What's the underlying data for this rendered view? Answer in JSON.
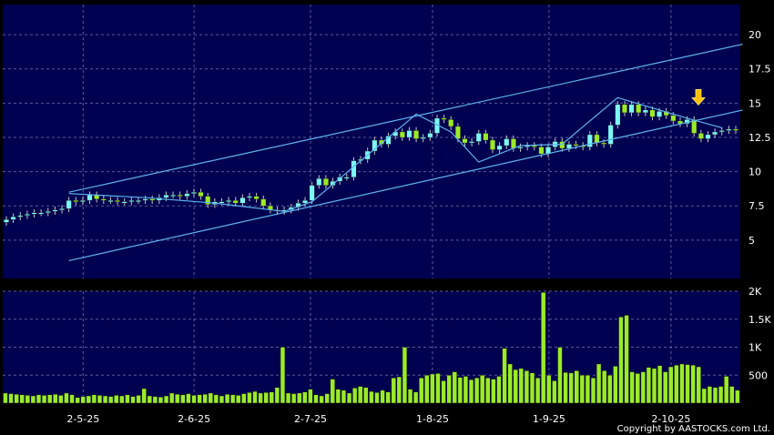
{
  "copyright": "Copyright by AASTOCKS.com Ltd.",
  "chart_data": [
    {
      "type": "candlestick",
      "y_ticks": [
        5,
        7.5,
        10,
        12.5,
        15,
        17.5,
        20
      ],
      "y_tick_labels": [
        "5",
        "7.5",
        "10",
        "12.5",
        "15",
        "17.5",
        "20"
      ],
      "ylim": [
        2.2,
        22.2
      ],
      "grid": true,
      "colors": {
        "background": "#000050",
        "grid": "#5a5a9a",
        "up": "#7cf7f7",
        "down": "#9bea2a",
        "trendline": "#5fb4f0",
        "marker": "#ffc000"
      },
      "closes": [
        6.5,
        6.7,
        6.8,
        6.9,
        7.0,
        7.0,
        7.1,
        7.2,
        7.3,
        7.9,
        7.8,
        7.9,
        8.3,
        8.0,
        7.9,
        7.9,
        7.8,
        7.8,
        7.9,
        7.9,
        8.0,
        7.9,
        8.1,
        8.3,
        8.3,
        8.2,
        8.4,
        8.5,
        8.2,
        7.6,
        7.8,
        7.8,
        7.9,
        7.7,
        8.1,
        8.2,
        8.0,
        7.5,
        7.2,
        7.1,
        7.2,
        7.4,
        7.7,
        7.9,
        9.0,
        9.5,
        9.0,
        9.3,
        9.6,
        9.6,
        10.8,
        10.9,
        11.5,
        12.3,
        12.0,
        12.6,
        12.9,
        12.5,
        13.0,
        12.4,
        12.5,
        12.8,
        13.9,
        13.8,
        13.3,
        12.4,
        12.1,
        12.2,
        12.8,
        12.3,
        11.6,
        11.9,
        12.4,
        11.7,
        11.8,
        11.9,
        11.8,
        11.3,
        11.8,
        12.2,
        11.7,
        12.0,
        11.9,
        11.8,
        12.7,
        12.1,
        12.0,
        13.4,
        14.9,
        14.3,
        14.9,
        14.3,
        14.5,
        14.0,
        14.4,
        14.1,
        13.7,
        13.5,
        13.8,
        12.8,
        12.4,
        12.7,
        12.9,
        13.0,
        13.1,
        13.0
      ],
      "marker": {
        "value": 15.2,
        "shape": "down-arrow"
      },
      "trendlines": [
        {
          "kind": "upper-channel",
          "points": [
            [
              9,
              8.5
            ],
            [
              106,
              19.3
            ]
          ]
        },
        {
          "kind": "lower-channel",
          "points": [
            [
              9,
              3.5
            ],
            [
              106,
              14.5
            ]
          ]
        },
        {
          "kind": "price-path",
          "points": [
            [
              9,
              8.4
            ],
            [
              20,
              8.1
            ],
            [
              30,
              7.7
            ],
            [
              40,
              7.1
            ],
            [
              44,
              7.8
            ],
            [
              59,
              14.2
            ],
            [
              64,
              12.9
            ],
            [
              68,
              10.7
            ],
            [
              74,
              11.9
            ],
            [
              80,
              12.0
            ],
            [
              88,
              15.4
            ],
            [
              98,
              13.9
            ],
            [
              103,
              13.2
            ]
          ]
        }
      ]
    },
    {
      "type": "bar",
      "series_name": "volume",
      "y_ticks": [
        500,
        1000,
        1500,
        2000
      ],
      "y_tick_labels": [
        "500",
        "1K",
        "1.5K",
        "2K"
      ],
      "ylim": [
        0,
        2000
      ],
      "x_tick_labels": [
        "2-5-25",
        "2-6-25",
        "2-7-25",
        "1-8-25",
        "1-9-25",
        "2-10-25"
      ],
      "x_tick_index": [
        14,
        34,
        55,
        77,
        98,
        120
      ],
      "values": [
        180,
        170,
        160,
        150,
        140,
        130,
        150,
        140,
        150,
        160,
        140,
        180,
        150,
        100,
        120,
        130,
        150,
        140,
        130,
        120,
        140,
        130,
        150,
        120,
        140,
        260,
        130,
        120,
        110,
        130,
        180,
        160,
        150,
        170,
        140,
        150,
        160,
        180,
        150,
        130,
        160,
        150,
        140,
        170,
        190,
        210,
        180,
        190,
        200,
        280,
        1000,
        180,
        170,
        180,
        200,
        250,
        150,
        130,
        170,
        430,
        250,
        230,
        180,
        270,
        300,
        280,
        210,
        190,
        230,
        200,
        450,
        470,
        1000,
        250,
        200,
        450,
        500,
        520,
        530,
        400,
        500,
        560,
        460,
        480,
        420,
        450,
        500,
        450,
        430,
        480,
        980,
        700,
        600,
        620,
        580,
        540,
        450,
        1980,
        500,
        400,
        1000,
        550,
        540,
        580,
        500,
        500,
        450,
        700,
        580,
        500,
        660,
        1540,
        1570,
        560,
        530,
        560,
        640,
        620,
        670,
        560,
        650,
        680,
        700,
        690,
        680,
        650,
        260,
        300,
        280,
        300,
        480,
        300,
        230
      ]
    }
  ]
}
